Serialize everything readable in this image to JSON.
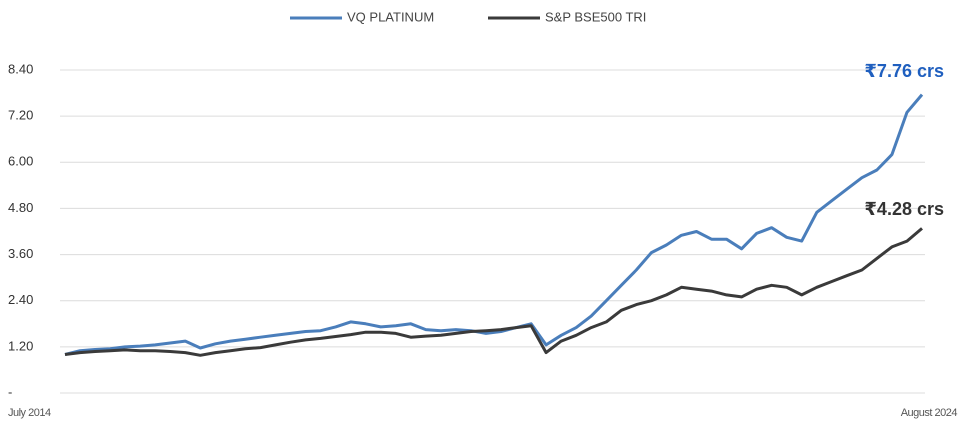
{
  "chart_data": {
    "type": "line",
    "categories": [
      "July 2014",
      null,
      null,
      null,
      null,
      null,
      null,
      null,
      null,
      null,
      null,
      null,
      null,
      null,
      null,
      null,
      null,
      null,
      null,
      null,
      null,
      null,
      null,
      null,
      null,
      null,
      null,
      null,
      null,
      null,
      null,
      null,
      null,
      null,
      null,
      null,
      null,
      null,
      null,
      null,
      null,
      null,
      null,
      null,
      null,
      null,
      null,
      null,
      null,
      null,
      null,
      null,
      null,
      null,
      null,
      null,
      null,
      "August 2024"
    ],
    "series": [
      {
        "name": "VQ PLATINUM",
        "color": "#4a7ebb",
        "values": [
          1.0,
          1.1,
          1.13,
          1.15,
          1.2,
          1.22,
          1.25,
          1.3,
          1.35,
          1.17,
          1.28,
          1.35,
          1.4,
          1.45,
          1.5,
          1.55,
          1.6,
          1.62,
          1.72,
          1.85,
          1.8,
          1.72,
          1.75,
          1.8,
          1.65,
          1.62,
          1.65,
          1.62,
          1.55,
          1.6,
          1.7,
          1.8,
          1.25,
          1.5,
          1.7,
          2.0,
          2.4,
          2.8,
          3.2,
          3.65,
          3.85,
          4.1,
          4.2,
          4.0,
          4.0,
          3.75,
          4.15,
          4.3,
          4.05,
          3.95,
          4.7,
          5.0,
          5.3,
          5.6,
          5.8,
          6.2,
          7.3,
          7.76
        ]
      },
      {
        "name": "S&P BSE500 TRI",
        "color": "#3a3a3a",
        "values": [
          1.0,
          1.05,
          1.08,
          1.1,
          1.12,
          1.1,
          1.1,
          1.08,
          1.05,
          0.98,
          1.05,
          1.1,
          1.15,
          1.18,
          1.25,
          1.32,
          1.38,
          1.42,
          1.47,
          1.52,
          1.58,
          1.58,
          1.55,
          1.45,
          1.48,
          1.5,
          1.55,
          1.6,
          1.62,
          1.65,
          1.7,
          1.75,
          1.05,
          1.35,
          1.5,
          1.7,
          1.85,
          2.15,
          2.3,
          2.4,
          2.55,
          2.75,
          2.7,
          2.65,
          2.55,
          2.5,
          2.7,
          2.8,
          2.75,
          2.55,
          2.75,
          2.9,
          3.05,
          3.2,
          3.5,
          3.8,
          3.95,
          4.28
        ]
      }
    ],
    "ylim": [
      0,
      8.4
    ],
    "yticks": [
      {
        "value": 0,
        "label": "-"
      },
      {
        "value": 1.2,
        "label": "1.20"
      },
      {
        "value": 2.4,
        "label": "2.40"
      },
      {
        "value": 3.6,
        "label": "3.60"
      },
      {
        "value": 4.8,
        "label": "4.80"
      },
      {
        "value": 6.0,
        "label": "6.00"
      },
      {
        "value": 7.2,
        "label": "7.20"
      },
      {
        "value": 8.4,
        "label": "8.40"
      }
    ],
    "grid": true,
    "legend": "top",
    "annotations": [
      {
        "text": "₹7.76 crs",
        "color": "#1f5fbf"
      },
      {
        "text": "₹4.28 crs",
        "color": "#333333"
      }
    ]
  }
}
